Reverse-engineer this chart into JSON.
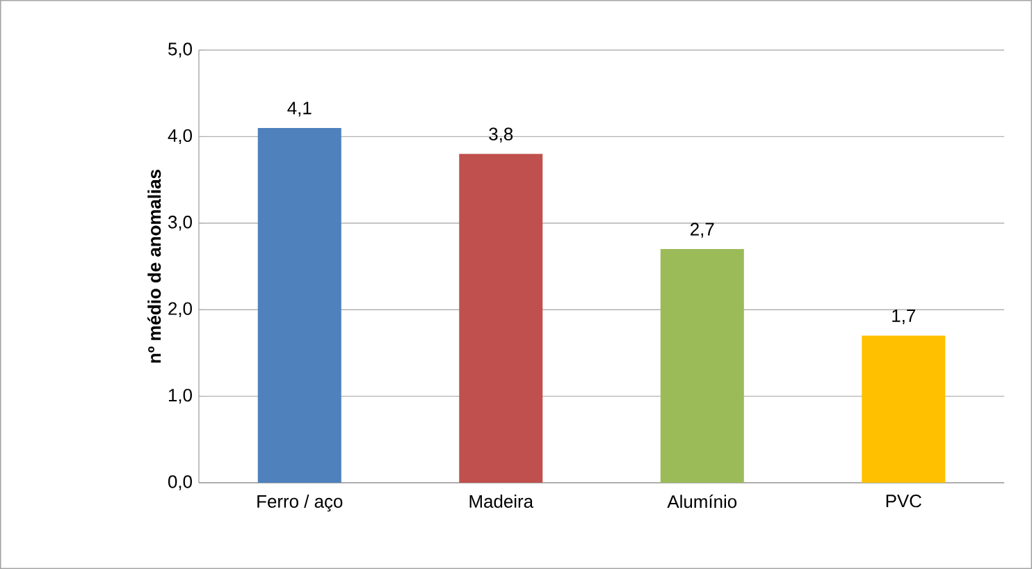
{
  "chart_data": {
    "type": "bar",
    "ylabel": "nº médio de anomalias",
    "categories": [
      "Ferro / aço",
      "Madeira",
      "Alumínio",
      "PVC"
    ],
    "values": [
      4.1,
      3.8,
      2.7,
      1.7
    ],
    "value_labels": [
      "4,1",
      "3,8",
      "2,7",
      "1,7"
    ],
    "colors": [
      "#4f81bd",
      "#c0504d",
      "#9bbb59",
      "#ffc000"
    ],
    "ylim": [
      0,
      5
    ],
    "yticks": [
      {
        "value": 0,
        "label": "0,0"
      },
      {
        "value": 1,
        "label": "1,0"
      },
      {
        "value": 2,
        "label": "2,0"
      },
      {
        "value": 3,
        "label": "3,0"
      },
      {
        "value": 4,
        "label": "4,0"
      },
      {
        "value": 5,
        "label": "5,0"
      }
    ],
    "grid": "y"
  }
}
